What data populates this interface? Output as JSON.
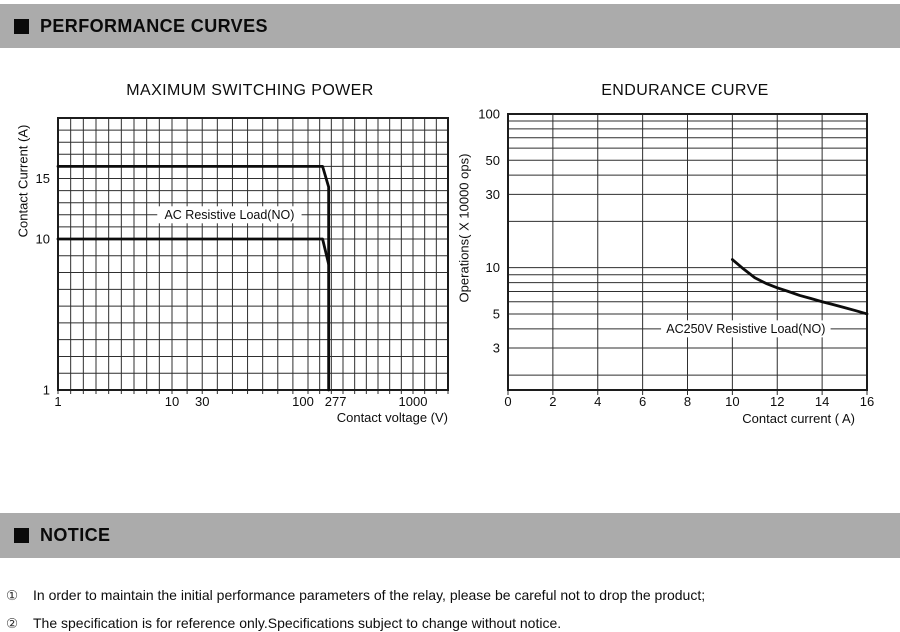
{
  "sections": {
    "performance": {
      "label": "PERFORMANCE CURVES"
    },
    "notice": {
      "label": "NOTICE"
    }
  },
  "notes": [
    {
      "num": "①",
      "text": "In order to maintain the initial performance parameters of the relay, please be careful not to drop the product;"
    },
    {
      "num": "②",
      "text": "The specification is for reference only.Specifications subject to change without notice."
    }
  ],
  "colors": {
    "bar_bg": "#ababab",
    "grid_line": "#2f2f2f",
    "curve": "#0c0c0c",
    "text": "#0d0d0d"
  },
  "chart_data": [
    {
      "type": "line",
      "title": "MAXIMUM SWITCHING POWER",
      "xlabel": "Contact voltage (V)",
      "ylabel": "Contact Current (A)",
      "x_scale": "log",
      "y_scale": "log",
      "xlim": [
        1,
        4000
      ],
      "ylim": [
        1,
        20
      ],
      "x_ticks": [
        1,
        10,
        30,
        100,
        277,
        1000
      ],
      "y_ticks": [
        15,
        10,
        1
      ],
      "grid": true,
      "annotation": {
        "text": "AC Resistive Load(NO)",
        "x": 48,
        "y": 12
      },
      "series": [
        {
          "name": "NO contact 16A limit",
          "points": [
            [
              1,
              16
            ],
            [
              225,
              16
            ],
            [
              277,
              14.3
            ],
            [
              277,
              1
            ]
          ]
        },
        {
          "name": "NO contact 10A limit",
          "points": [
            [
              1,
              10
            ],
            [
              225,
              10
            ],
            [
              277,
              8.5
            ]
          ]
        }
      ]
    },
    {
      "type": "line",
      "title": "ENDURANCE CURVE",
      "xlabel": "Contact current ( A)",
      "ylabel": "Operations( X 10000 ops)",
      "x_scale": "linear",
      "y_scale": "log",
      "xlim": [
        0,
        16
      ],
      "ylim": [
        1.6,
        100
      ],
      "x_ticks": [
        0,
        2,
        4,
        6,
        8,
        10,
        12,
        14,
        16
      ],
      "y_ticks": [
        100,
        50,
        30,
        10,
        5,
        3
      ],
      "grid": true,
      "annotation": {
        "text": "AC250V Resistive Load(NO)",
        "x": 10.6,
        "y": 4
      },
      "series": [
        {
          "name": "AC250V resistive load endurance",
          "points": [
            [
              10,
              11.3
            ],
            [
              10.5,
              9.8
            ],
            [
              11,
              8.6
            ],
            [
              11.5,
              7.9
            ],
            [
              12,
              7.4
            ],
            [
              12.5,
              7.0
            ],
            [
              13,
              6.6
            ],
            [
              13.5,
              6.3
            ],
            [
              14,
              6.0
            ],
            [
              14.5,
              5.75
            ],
            [
              15,
              5.5
            ],
            [
              15.5,
              5.25
            ],
            [
              16,
              5.0
            ]
          ]
        }
      ]
    }
  ]
}
